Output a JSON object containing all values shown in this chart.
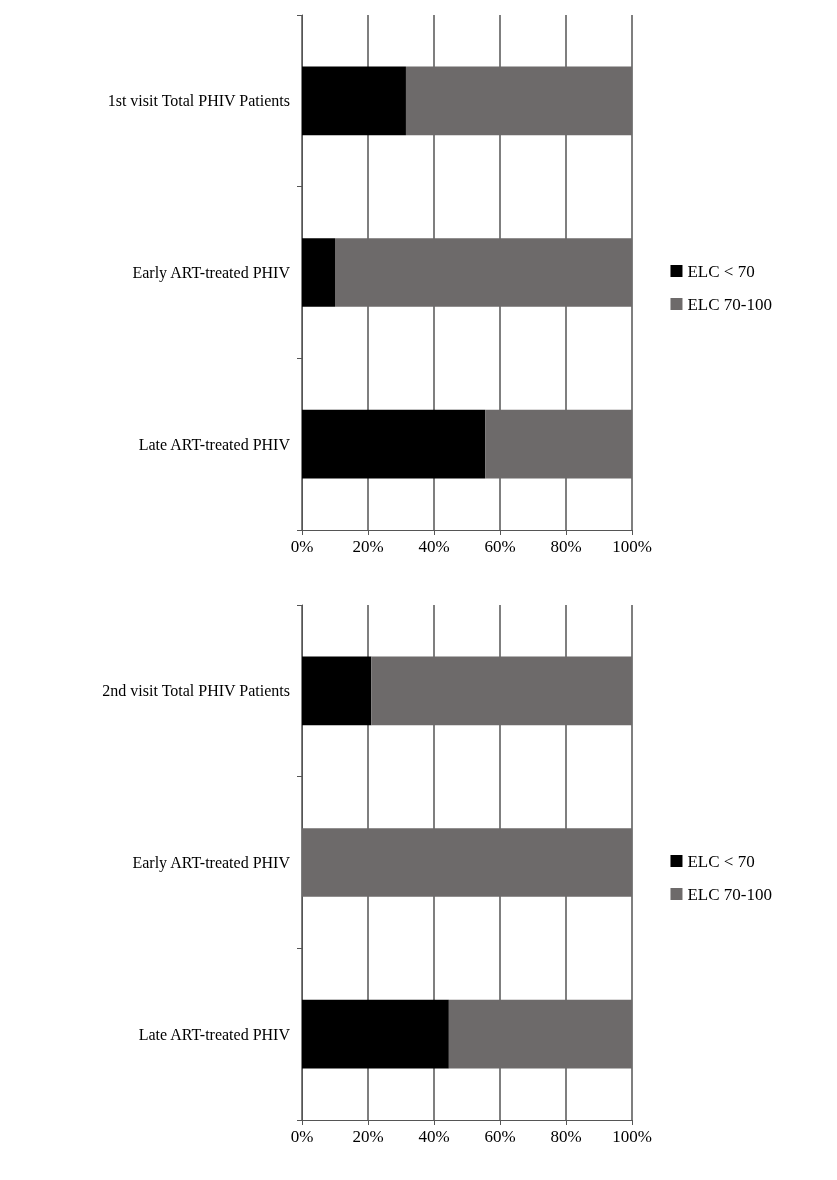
{
  "chart_data": [
    {
      "type": "bar",
      "orientation": "horizontal",
      "stacked": true,
      "categories": [
        "1st visit Total PHIV Patients",
        "Early ART-treated PHIV",
        "Late ART-treated PHIV"
      ],
      "series": [
        {
          "name": "ELC < 70",
          "color": "#000000",
          "values": [
            31.5,
            10,
            55.5
          ]
        },
        {
          "name": "ELC 70-100",
          "color": "#6d6a6a",
          "values": [
            68.5,
            90,
            44.5
          ]
        }
      ],
      "xlim": [
        0,
        100
      ],
      "xticks": [
        {
          "value": 0,
          "label": "0%"
        },
        {
          "value": 20,
          "label": "20%"
        },
        {
          "value": 40,
          "label": "40%"
        },
        {
          "value": 60,
          "label": "60%"
        },
        {
          "value": 80,
          "label": "80%"
        },
        {
          "value": 100,
          "label": "100%"
        }
      ],
      "grid": "x",
      "legend": "right"
    },
    {
      "type": "bar",
      "orientation": "horizontal",
      "stacked": true,
      "categories": [
        "2nd visit Total PHIV Patients",
        "Early ART-treated PHIV",
        "Late ART-treated PHIV"
      ],
      "series": [
        {
          "name": "ELC < 70",
          "color": "#000000",
          "values": [
            21,
            0,
            44.5
          ]
        },
        {
          "name": "ELC 70-100",
          "color": "#6d6a6a",
          "values": [
            79,
            100,
            55.5
          ]
        }
      ],
      "xlim": [
        0,
        100
      ],
      "xticks": [
        {
          "value": 0,
          "label": "0%"
        },
        {
          "value": 20,
          "label": "20%"
        },
        {
          "value": 40,
          "label": "40%"
        },
        {
          "value": 60,
          "label": "60%"
        },
        {
          "value": 80,
          "label": "80%"
        },
        {
          "value": 100,
          "label": "100%"
        }
      ],
      "grid": "x",
      "legend": "right"
    }
  ]
}
